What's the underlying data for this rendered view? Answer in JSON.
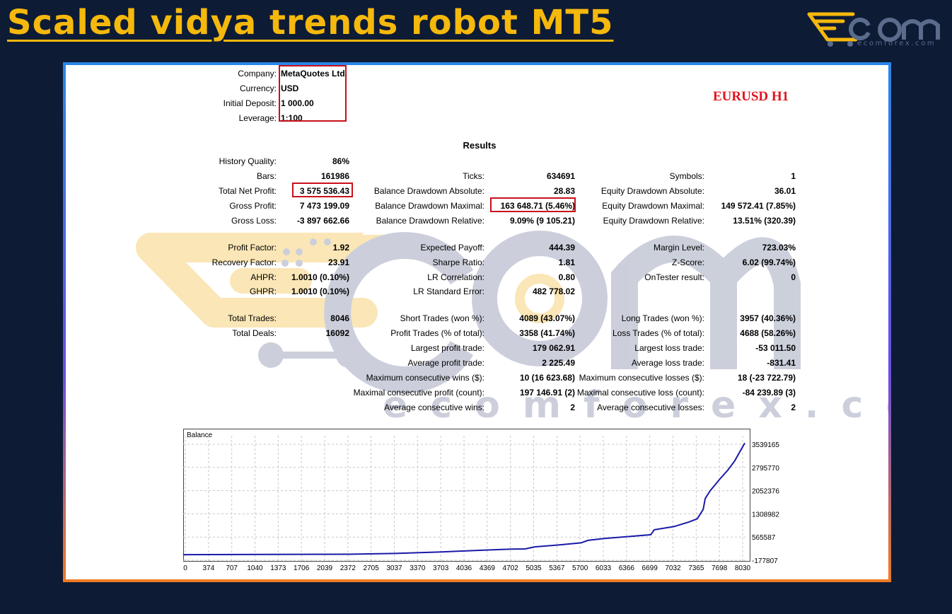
{
  "header": {
    "title": "Scaled vidya trends robot MT5",
    "logo_text": "ecomforex.com",
    "watermark_text": "ecomforex.com"
  },
  "account": {
    "company_label": "Company:",
    "company": "MetaQuotes Ltd.",
    "currency_label": "Currency:",
    "currency": "USD",
    "deposit_label": "Initial Deposit:",
    "deposit": "1 000.00",
    "leverage_label": "Leverage:",
    "leverage": "1:100"
  },
  "symbol": "EURUSD H1",
  "results_title": "Results",
  "stats_col1": [
    {
      "label": "History Quality:",
      "value": "86%"
    },
    {
      "label": "Bars:",
      "value": "161986"
    },
    {
      "label": "Total Net Profit:",
      "value": "3 575 536.43"
    },
    {
      "label": "Gross Profit:",
      "value": "7 473 199.09"
    },
    {
      "label": "Gross Loss:",
      "value": "-3 897 662.66"
    },
    {
      "label": "Profit Factor:",
      "value": "1.92"
    },
    {
      "label": "Recovery Factor:",
      "value": "23.91"
    },
    {
      "label": "AHPR:",
      "value": "1.0010 (0.10%)"
    },
    {
      "label": "GHPR:",
      "value": "1.0010 (0.10%)"
    },
    {
      "label": "Total Trades:",
      "value": "8046"
    },
    {
      "label": "Total Deals:",
      "value": "16092"
    }
  ],
  "stats_col2": [
    {
      "label": "Ticks:",
      "value": "634691"
    },
    {
      "label": "Balance Drawdown Absolute:",
      "value": "28.83"
    },
    {
      "label": "Balance Drawdown Maximal:",
      "value": "163 648.71 (5.46%)"
    },
    {
      "label": "Balance Drawdown Relative:",
      "value": "9.09% (9 105.21)"
    },
    {
      "label": "Expected Payoff:",
      "value": "444.39"
    },
    {
      "label": "Sharpe Ratio:",
      "value": "1.81"
    },
    {
      "label": "LR Correlation:",
      "value": "0.80"
    },
    {
      "label": "LR Standard Error:",
      "value": "482 778.02"
    },
    {
      "label": "Short Trades (won %):",
      "value": "4089 (43.07%)"
    },
    {
      "label": "Profit Trades (% of total):",
      "value": "3358 (41.74%)"
    },
    {
      "label": "Largest profit trade:",
      "value": "179 062.91"
    },
    {
      "label": "Average profit trade:",
      "value": "2 225.49"
    },
    {
      "label": "Maximum consecutive wins ($):",
      "value": "10 (16 623.68)"
    },
    {
      "label": "Maximal consecutive profit (count):",
      "value": "197 146.91 (2)"
    },
    {
      "label": "Average consecutive wins:",
      "value": "2"
    }
  ],
  "stats_col3": [
    {
      "label": "Symbols:",
      "value": "1"
    },
    {
      "label": "Equity Drawdown Absolute:",
      "value": "36.01"
    },
    {
      "label": "Equity Drawdown Maximal:",
      "value": "149 572.41 (7.85%)"
    },
    {
      "label": "Equity Drawdown Relative:",
      "value": "13.51% (320.39)"
    },
    {
      "label": "Margin Level:",
      "value": "723.03%"
    },
    {
      "label": "Z-Score:",
      "value": "6.02 (99.74%)"
    },
    {
      "label": "OnTester result:",
      "value": "0"
    },
    {
      "label": "Long Trades (won %):",
      "value": "3957 (40.36%)"
    },
    {
      "label": "Loss Trades (% of total):",
      "value": "4688 (58.26%)"
    },
    {
      "label": "Largest loss trade:",
      "value": "-53 011.50"
    },
    {
      "label": "Average loss trade:",
      "value": "-831.41"
    },
    {
      "label": "Maximum consecutive losses ($):",
      "value": "18 (-23 722.79)"
    },
    {
      "label": "Maximal consecutive loss (count):",
      "value": "-84 239.89 (3)"
    },
    {
      "label": "Average consecutive losses:",
      "value": "2"
    }
  ],
  "colors": {
    "title": "#f5b80c",
    "background": "#0d1b35",
    "symbol": "#e0141e",
    "highlight_box": "#c8101a",
    "balance_line": "#1a1aa8"
  },
  "chart_data": {
    "type": "line",
    "title": "Balance",
    "x_ticks": [
      "0",
      "374",
      "707",
      "1040",
      "1373",
      "1706",
      "2039",
      "2372",
      "2705",
      "3037",
      "3370",
      "3703",
      "4036",
      "4369",
      "4702",
      "5035",
      "5367",
      "5700",
      "6033",
      "6366",
      "6699",
      "7032",
      "7365",
      "7698",
      "8030"
    ],
    "y_ticks": [
      "3539165",
      "2795770",
      "2052376",
      "1308982",
      "565587",
      "-177807"
    ],
    "ylim": [
      -177807,
      3539165
    ],
    "xlim": [
      0,
      8046
    ],
    "series": [
      {
        "x": [
          0,
          2372,
          3037,
          3703,
          4369,
          4702,
          4900,
          5035,
          5367,
          5700,
          5800,
          6033,
          6366,
          6699,
          6750,
          7032,
          7250,
          7365,
          7450,
          7480,
          7550,
          7698,
          7800,
          7900,
          8046
        ],
        "y": [
          1000,
          15000,
          40000,
          90000,
          150000,
          180000,
          185000,
          250000,
          310000,
          380000,
          460000,
          520000,
          580000,
          640000,
          800000,
          900000,
          1050000,
          1150000,
          1450000,
          1800000,
          2050000,
          2450000,
          2700000,
          3000000,
          3575536
        ]
      }
    ]
  }
}
